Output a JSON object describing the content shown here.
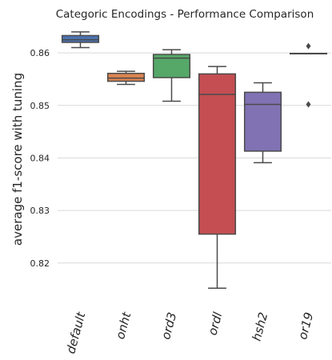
{
  "chart_data": {
    "type": "box",
    "title": "Categoric Encodings - Performance Comparison",
    "xlabel": "",
    "ylabel": "average f1-score with tuning",
    "ylim": [
      0.8125,
      0.8655
    ],
    "yticks": [
      0.82,
      0.83,
      0.84,
      0.85,
      0.86
    ],
    "ytick_labels": [
      "0.82",
      "0.83",
      "0.84",
      "0.85",
      "0.86"
    ],
    "grid": "horizontal",
    "categories": [
      "default",
      "onht",
      "ord3",
      "ordl",
      "hsh2",
      "or19"
    ],
    "boxes": [
      {
        "category": "default",
        "whislo": 0.861,
        "q1": 0.862,
        "med": 0.8625,
        "q3": 0.8633,
        "whishi": 0.864,
        "fliers": [],
        "color": "#4c72b0"
      },
      {
        "category": "onht",
        "whislo": 0.854,
        "q1": 0.8546,
        "med": 0.8552,
        "q3": 0.8561,
        "whishi": 0.8565,
        "fliers": [],
        "color": "#dd8452"
      },
      {
        "category": "ord3",
        "whislo": 0.8508,
        "q1": 0.8553,
        "med": 0.859,
        "q3": 0.8597,
        "whishi": 0.8606,
        "fliers": [],
        "color": "#55a868"
      },
      {
        "category": "ordl",
        "whislo": 0.8152,
        "q1": 0.8255,
        "med": 0.8521,
        "q3": 0.856,
        "whishi": 0.8574,
        "fliers": [],
        "color": "#c44e52"
      },
      {
        "category": "hsh2",
        "whislo": 0.8391,
        "q1": 0.8413,
        "med": 0.8502,
        "q3": 0.8525,
        "whishi": 0.8543,
        "fliers": [],
        "color": "#8172b3"
      },
      {
        "category": "or19",
        "whislo": 0.8599,
        "q1": 0.8599,
        "med": 0.8599,
        "q3": 0.8599,
        "whishi": 0.8599,
        "fliers": [
          0.8613,
          0.8502
        ],
        "color": "#937860"
      }
    ]
  }
}
